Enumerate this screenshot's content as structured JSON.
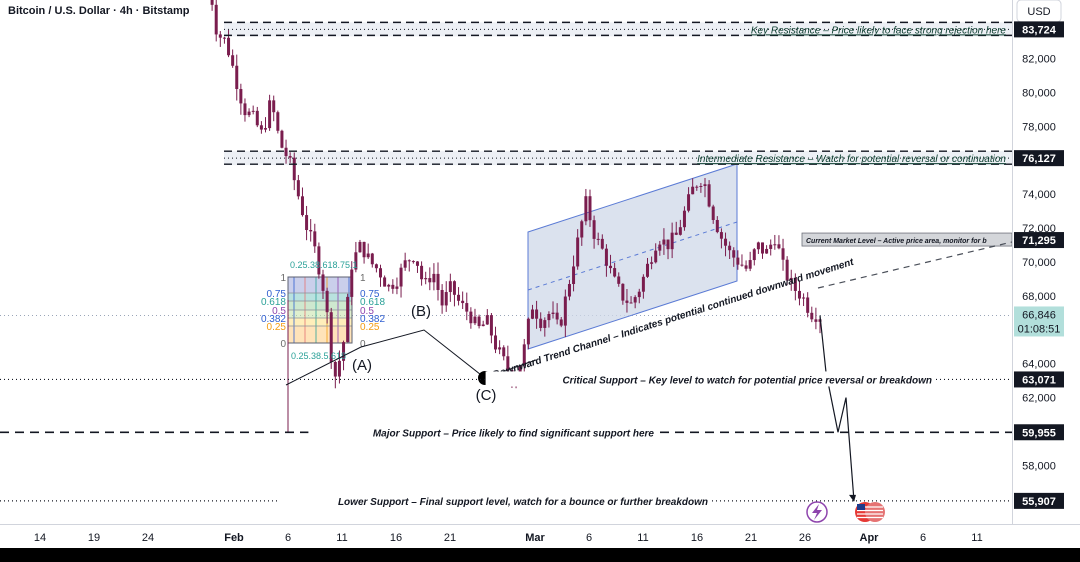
{
  "chart_data": {
    "type": "line",
    "title": "Bitcoin / U.S. Dollar · 4h · Bitstamp",
    "currency_button": "USD",
    "x_ticks": [
      "14",
      "19",
      "24",
      "Feb",
      "6",
      "11",
      "16",
      "21",
      "Mar",
      "6",
      "11",
      "16",
      "21",
      "26",
      "Apr",
      "6",
      "11"
    ],
    "y_ticks": [
      "82,000",
      "80,000",
      "78,000",
      "74,000",
      "72,000",
      "70,000",
      "68,000",
      "64,000",
      "62,000",
      "58,000"
    ],
    "ylim": [
      54000,
      86000
    ],
    "grid": false,
    "series": [
      {
        "values": [
          87000,
          83500,
          83000,
          81000,
          79000,
          78500,
          77500,
          79500,
          77000,
          76000,
          74000,
          72000,
          70500,
          68000,
          63000,
          65000,
          70000,
          71000,
          70000,
          69500,
          68500,
          69000,
          70000,
          70500,
          68500,
          69500,
          67500,
          68500,
          67500,
          67000,
          66000,
          66500,
          65000,
          64000,
          63071,
          64500,
          67500,
          66500,
          67000,
          66000,
          68500,
          71000,
          73500,
          71500,
          70500,
          69000,
          68000,
          67500,
          68500,
          70000,
          71500,
          71000,
          71500,
          73000,
          74500,
          75000,
          73000,
          71500,
          70500,
          70000,
          69500,
          71000,
          70500,
          71500,
          69500,
          68500,
          68000,
          67000,
          66846
        ]
      },
      {
        "name": "projection",
        "values": [
          66846,
          63500,
          59955,
          62000,
          55907
        ]
      }
    ],
    "levels": [
      {
        "price": 83724,
        "label": "83,724",
        "annotation": "Key Resistance – Price likely to face strong rejection here",
        "style": "dashed-box"
      },
      {
        "price": 76127,
        "label": "76,127",
        "annotation": "Intermediate Resistance – Watch for potential reversal or continuation",
        "style": "dashed-box"
      },
      {
        "price": 71295,
        "label": "71,295",
        "annotation": "Current Market Level – Active price area, monitor for b",
        "style": "box"
      },
      {
        "price": 63071,
        "label": "63,071",
        "annotation": "Critical Support – Key level to watch for potential price reversal or breakdown",
        "style": "dotted"
      },
      {
        "price": 59955,
        "label": "59,955",
        "annotation": "Major Support – Price likely to find significant support here",
        "style": "dashed"
      },
      {
        "price": 55907,
        "label": "55,907",
        "annotation": "Lower Support – Final support level, watch for a bounce or further breakdown",
        "style": "dotted"
      }
    ],
    "current_price": {
      "price": 66846,
      "label": "66,846",
      "countdown": "01:08:51"
    },
    "channel_label": "Downward Trend Channel – Indicates potential continued downward movement",
    "wave_labels": [
      "(A)",
      "(B)",
      "(C)"
    ],
    "fib_levels": [
      "1",
      "0.75",
      "0.618",
      "0.5",
      "0.382",
      "0.25",
      "0"
    ],
    "fib_bottom_text": "0.25.38.5.618",
    "fib_top_text": "0.25.38.618.75.1",
    "colors": {
      "candle": "#7a1d4e",
      "price_tag": "#131722",
      "current_tag": "#b2dfdb",
      "channel_fill": "#cfd8e8",
      "channel_border": "#5b7bd5",
      "fib_blue": "#2f5fd0",
      "fib_teal": "#2aa198",
      "fib_orange": "#f39c12"
    }
  }
}
